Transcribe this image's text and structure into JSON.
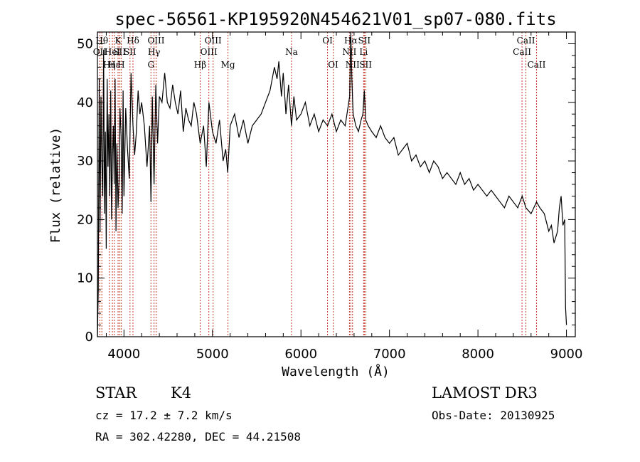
{
  "chart_data": {
    "type": "line",
    "title": "spec-56561-KP195920N454621V01_sp07-080.fits",
    "xlabel": "Wavelength (Å)",
    "ylabel": "Flux (relative)",
    "xlim": [
      3700,
      9100
    ],
    "ylim": [
      0,
      52
    ],
    "xticks": [
      4000,
      5000,
      6000,
      7000,
      8000,
      9000
    ],
    "yticks": [
      0,
      10,
      20,
      30,
      40,
      50
    ],
    "series": [
      {
        "name": "spectrum",
        "x": [
          3700,
          3710,
          3720,
          3730,
          3740,
          3750,
          3760,
          3770,
          3780,
          3790,
          3800,
          3810,
          3820,
          3830,
          3840,
          3850,
          3860,
          3870,
          3880,
          3890,
          3900,
          3910,
          3920,
          3933,
          3945,
          3955,
          3968,
          3980,
          3990,
          4000,
          4020,
          4040,
          4060,
          4080,
          4102,
          4120,
          4140,
          4160,
          4180,
          4200,
          4230,
          4260,
          4290,
          4305,
          4320,
          4340,
          4360,
          4380,
          4400,
          4430,
          4460,
          4490,
          4520,
          4550,
          4580,
          4610,
          4640,
          4670,
          4700,
          4730,
          4760,
          4790,
          4820,
          4861,
          4900,
          4930,
          4960,
          5000,
          5040,
          5080,
          5120,
          5150,
          5172,
          5200,
          5250,
          5300,
          5350,
          5400,
          5450,
          5500,
          5550,
          5600,
          5650,
          5700,
          5730,
          5750,
          5780,
          5800,
          5830,
          5860,
          5893,
          5920,
          5950,
          6000,
          6050,
          6100,
          6150,
          6200,
          6250,
          6300,
          6350,
          6400,
          6450,
          6500,
          6530,
          6550,
          6563,
          6575,
          6590,
          6620,
          6650,
          6680,
          6700,
          6716,
          6731,
          6760,
          6800,
          6850,
          6900,
          6950,
          7000,
          7050,
          7100,
          7150,
          7200,
          7250,
          7300,
          7350,
          7400,
          7450,
          7500,
          7550,
          7600,
          7650,
          7700,
          7750,
          7800,
          7850,
          7900,
          7950,
          8000,
          8050,
          8100,
          8150,
          8200,
          8250,
          8300,
          8350,
          8400,
          8450,
          8500,
          8542,
          8600,
          8662,
          8700,
          8750,
          8800,
          8830,
          8860,
          8880,
          8900,
          8920,
          8940,
          8960,
          8980,
          8990,
          9000
        ],
        "y": [
          0,
          8,
          44,
          18,
          41,
          30,
          24,
          49,
          21,
          35,
          15,
          44,
          29,
          38,
          24,
          42,
          20,
          31,
          36,
          26,
          44,
          18,
          33,
          22,
          27,
          39,
          34,
          21,
          42,
          24,
          39,
          32,
          27,
          45,
          36,
          31,
          35,
          42,
          38,
          40,
          36,
          29,
          36,
          23,
          41,
          26,
          43,
          33,
          41,
          40,
          45,
          40,
          39,
          43,
          40,
          38,
          42,
          35,
          39,
          37,
          36,
          40,
          38,
          33,
          36,
          29,
          40,
          35,
          33,
          37,
          30,
          32,
          28,
          36,
          38,
          34,
          37,
          33,
          36,
          37,
          38,
          40,
          42,
          46,
          44,
          47,
          41,
          45,
          38,
          43,
          36,
          41,
          37,
          38,
          40,
          36,
          38,
          35,
          37,
          36,
          38,
          35,
          37,
          36,
          39,
          41,
          52,
          44,
          38,
          36,
          35,
          37,
          38,
          42,
          37,
          36,
          35,
          34,
          36,
          34,
          33,
          34,
          31,
          32,
          33,
          30,
          31,
          29,
          30,
          28,
          30,
          29,
          27,
          28,
          27,
          26,
          28,
          26,
          27,
          25,
          26,
          25,
          24,
          25,
          24,
          23,
          22,
          24,
          23,
          22,
          24,
          22,
          21,
          23,
          22,
          21,
          18,
          19,
          16,
          17,
          18,
          22,
          24,
          19,
          20,
          5,
          2
        ]
      }
    ],
    "lines": [
      {
        "w": 3727,
        "label": "OII",
        "row": 2
      },
      {
        "w": 3750,
        "label": "Hθ",
        "row": 1
      },
      {
        "w": 3835,
        "label": "Hη",
        "row": 3
      },
      {
        "w": 3869,
        "label": "HeI",
        "row": 2
      },
      {
        "w": 3889,
        "label": "Hε",
        "row": 3
      },
      {
        "w": 3933,
        "label": "K",
        "row": 1
      },
      {
        "w": 3950,
        "label": "SII",
        "row": 2
      },
      {
        "w": 3968,
        "label": "H",
        "row": 3
      },
      {
        "w": 4068,
        "label": "SII",
        "row": 2
      },
      {
        "w": 4102,
        "label": "Hδ",
        "row": 1
      },
      {
        "w": 4305,
        "label": "G",
        "row": 3
      },
      {
        "w": 4340,
        "label": "Hγ",
        "row": 2
      },
      {
        "w": 4363,
        "label": "OIII",
        "row": 1
      },
      {
        "w": 4861,
        "label": "Hβ",
        "row": 3
      },
      {
        "w": 4959,
        "label": "OIII",
        "row": 2
      },
      {
        "w": 5007,
        "label": "OIII",
        "row": 1
      },
      {
        "w": 5175,
        "label": "Mg",
        "row": 3
      },
      {
        "w": 5893,
        "label": "Na",
        "row": 2
      },
      {
        "w": 6300,
        "label": "OI",
        "row": 1
      },
      {
        "w": 6364,
        "label": "OI",
        "row": 3
      },
      {
        "w": 6548,
        "label": "NII",
        "row": 2
      },
      {
        "w": 6563,
        "label": "Hα",
        "row": 1
      },
      {
        "w": 6583,
        "label": "NII",
        "row": 3
      },
      {
        "w": 6708,
        "label": "Li",
        "row": 2
      },
      {
        "w": 6716,
        "label": "SII",
        "row": 1
      },
      {
        "w": 6731,
        "label": "SII",
        "row": 3
      },
      {
        "w": 8498,
        "label": "CaII",
        "row": 2
      },
      {
        "w": 8542,
        "label": "CaII",
        "row": 1
      },
      {
        "w": 8662,
        "label": "CaII",
        "row": 3
      }
    ]
  },
  "info": {
    "class": "STAR",
    "subclass": "K4",
    "survey": "LAMOST DR3",
    "redshift": "cz = 17.2 ± 7.2 km/s",
    "obs_date": "Obs-Date: 20130925",
    "coords": "RA = 302.42280, DEC =  44.21508"
  },
  "colors": {
    "line_marker": "#c0392b",
    "spectrum": "#000000"
  }
}
